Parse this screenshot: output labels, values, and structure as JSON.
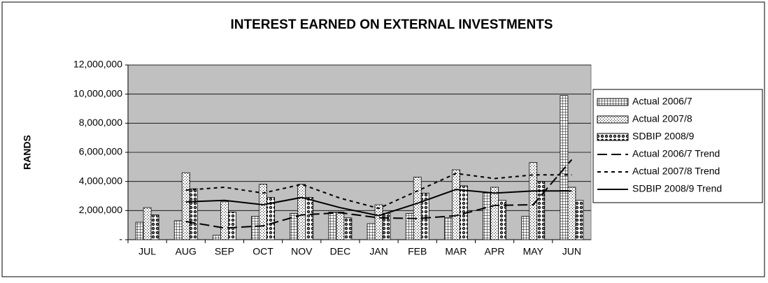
{
  "chart_data": {
    "type": "bar",
    "title": "INTEREST EARNED ON EXTERNAL INVESTMENTS",
    "y_label": "RANDS",
    "categories": [
      "JUL",
      "AUG",
      "SEP",
      "OCT",
      "NOV",
      "DEC",
      "JAN",
      "FEB",
      "MAR",
      "APR",
      "MAY",
      "JUN"
    ],
    "series": [
      {
        "name": "Actual 2006/7",
        "type": "bar",
        "color": "#000000",
        "pattern": "grid",
        "values": [
          1200000,
          1300000,
          300000,
          1600000,
          1800000,
          1900000,
          1100000,
          1800000,
          1500000,
          3200000,
          1600000,
          9900000
        ]
      },
      {
        "name": "Actual 2007/8",
        "type": "bar",
        "color": "#000000",
        "pattern": "dots",
        "values": [
          2200000,
          4600000,
          2600000,
          3800000,
          3800000,
          1900000,
          2400000,
          4300000,
          4800000,
          3600000,
          5300000,
          3600000
        ]
      },
      {
        "name": "SDBIP 2008/9",
        "type": "bar",
        "color": "#000000",
        "pattern": "circles",
        "values": [
          1700000,
          3500000,
          1900000,
          2900000,
          2900000,
          1500000,
          1800000,
          3200000,
          3700000,
          2700000,
          4000000,
          2700000
        ]
      },
      {
        "name": "Actual 2006/7 Trend",
        "type": "line",
        "color": "#000000",
        "dash": "long",
        "values": [
          null,
          1250000,
          800000,
          950000,
          1700000,
          1850000,
          1500000,
          1450000,
          1650000,
          2350000,
          2400000,
          5500000
        ]
      },
      {
        "name": "Actual 2007/8 Trend",
        "type": "line",
        "color": "#000000",
        "dash": "short",
        "values": [
          null,
          3400000,
          3600000,
          3200000,
          3800000,
          2850000,
          2150000,
          3350000,
          4550000,
          4200000,
          4450000,
          4450000
        ]
      },
      {
        "name": "SDBIP 2008/9 Trend",
        "type": "line",
        "color": "#000000",
        "dash": "solid",
        "values": [
          null,
          2600000,
          2700000,
          2400000,
          2900000,
          2200000,
          1650000,
          2500000,
          3450000,
          3200000,
          3350000,
          3350000
        ]
      }
    ],
    "ylim": [
      0,
      12000000
    ],
    "yticks": [
      {
        "value": 0,
        "label": "-"
      },
      {
        "value": 2000000,
        "label": "2,000,000"
      },
      {
        "value": 4000000,
        "label": "4,000,000"
      },
      {
        "value": 6000000,
        "label": "6,000,000"
      },
      {
        "value": 8000000,
        "label": "8,000,000"
      },
      {
        "value": 10000000,
        "label": "10,000,000"
      },
      {
        "value": 12000000,
        "label": "12,000,000"
      }
    ],
    "grid": true,
    "plot_background": "#c0c0c0",
    "legend": "right"
  }
}
